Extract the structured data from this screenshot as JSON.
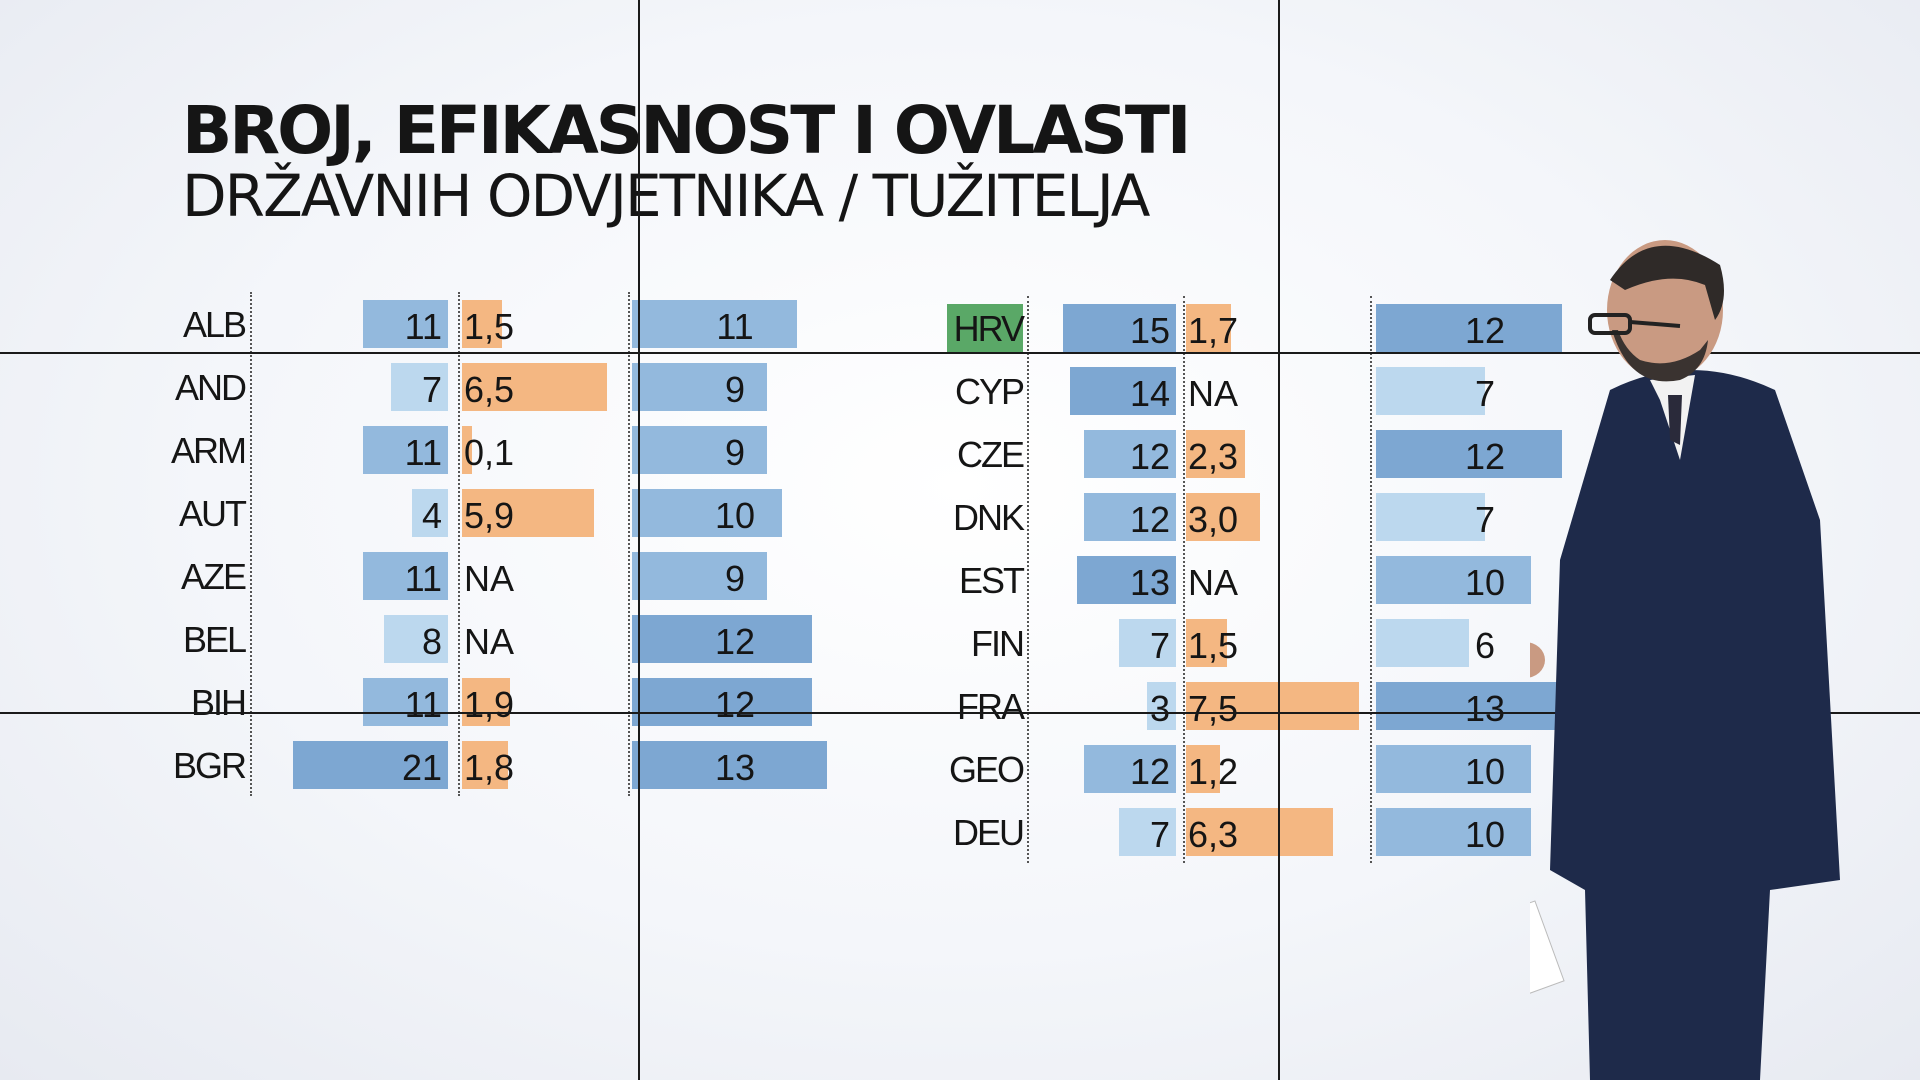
{
  "title": "BROJ, EFIKASNOST I OVLASTI",
  "subtitle": "DRŽAVNIH ODVJETNIKA / TUŽITELJA",
  "colors": {
    "blue_light": "#bcd8ee",
    "blue_mid": "#93b9dd",
    "blue_dark": "#7da7d2",
    "orange": "#f4b782",
    "highlight_green": "#5aa867"
  },
  "chart_data": {
    "type": "table",
    "columns": [
      "country",
      "value_1",
      "value_2",
      "value_3"
    ],
    "highlighted": "HRV",
    "left": [
      {
        "country": "ALB",
        "v1": "11",
        "v2": "1,5",
        "v3": "11"
      },
      {
        "country": "AND",
        "v1": "7",
        "v2": "6,5",
        "v3": "9"
      },
      {
        "country": "ARM",
        "v1": "11",
        "v2": "0,1",
        "v3": "9"
      },
      {
        "country": "AUT",
        "v1": "4",
        "v2": "5,9",
        "v3": "10"
      },
      {
        "country": "AZE",
        "v1": "11",
        "v2": "NA",
        "v3": "9"
      },
      {
        "country": "BEL",
        "v1": "8",
        "v2": "NA",
        "v3": "12"
      },
      {
        "country": "BIH",
        "v1": "11",
        "v2": "1,9",
        "v3": "12"
      },
      {
        "country": "BGR",
        "v1": "21",
        "v2": "1,8",
        "v3": "13"
      }
    ],
    "right": [
      {
        "country": "HRV",
        "v1": "15",
        "v2": "1,7",
        "v3": "12"
      },
      {
        "country": "CYP",
        "v1": "14",
        "v2": "NA",
        "v3": "7"
      },
      {
        "country": "CZE",
        "v1": "12",
        "v2": "2,3",
        "v3": "12"
      },
      {
        "country": "DNK",
        "v1": "12",
        "v2": "3,0",
        "v3": "7"
      },
      {
        "country": "EST",
        "v1": "13",
        "v2": "NA",
        "v3": "10"
      },
      {
        "country": "FIN",
        "v1": "7",
        "v2": "1,5",
        "v3": "6"
      },
      {
        "country": "FRA",
        "v1": "3",
        "v2": "7,5",
        "v3": "13"
      },
      {
        "country": "GEO",
        "v1": "12",
        "v2": "1,2",
        "v3": "10"
      },
      {
        "country": "DEU",
        "v1": "7",
        "v2": "6,3",
        "v3": "10"
      }
    ]
  }
}
